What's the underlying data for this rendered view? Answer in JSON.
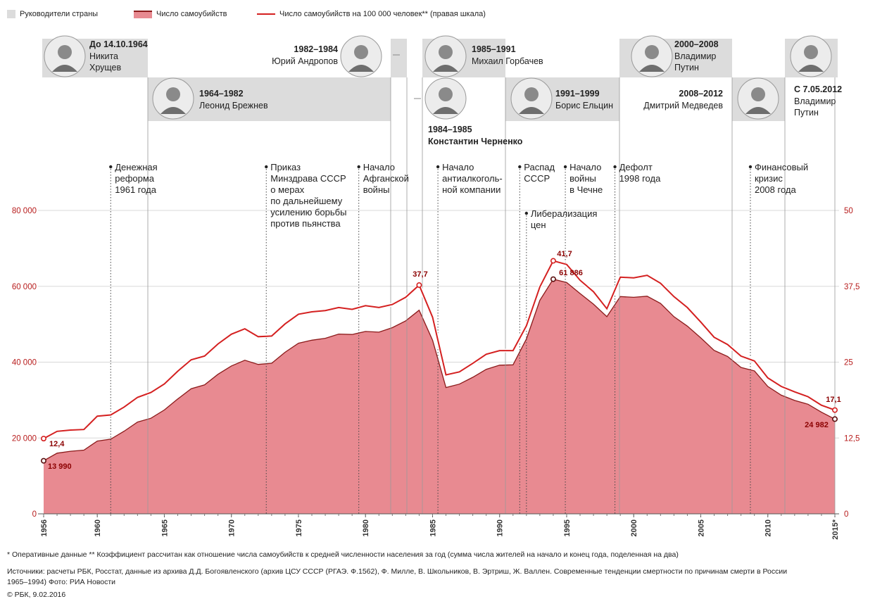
{
  "legend": {
    "leaders": "Руководители страны",
    "suicides": "Число самоубийств",
    "rate": "Число самоубийств на 100 000 человек** (правая шкала)"
  },
  "leaders": [
    {
      "years": "До 14.10.1964",
      "name1": "Никита",
      "name2": "Хрущев",
      "start": 1956,
      "end": 1964.8
    },
    {
      "years": "1964–1982",
      "name1": "Леонид Брежнев",
      "name2": "",
      "start": 1964.8,
      "end": 1982.9
    },
    {
      "years": "1982–1984",
      "name1": "Юрий Андропов",
      "name2": "",
      "start": 1982.9,
      "end": 1984.1
    },
    {
      "years": "1984–1985",
      "name1": "Константин Черненко",
      "name2": "",
      "start": 1984.1,
      "end": 1985.2
    },
    {
      "years": "1985–1991",
      "name1": "Михаил Горбачев",
      "name2": "",
      "start": 1985.2,
      "end": 1991.0
    },
    {
      "years": "1991–1999",
      "name1": "Борис Ельцин",
      "name2": "",
      "start": 1991.0,
      "end": 1999.9
    },
    {
      "years": "2000–2008",
      "name1": "Владимир",
      "name2": "Путин",
      "start": 1999.9,
      "end": 2008.3
    },
    {
      "years": "2008–2012",
      "name1": "Дмитрий Медведев",
      "name2": "",
      "start": 2008.3,
      "end": 2012.35
    },
    {
      "years": "С 7.05.2012",
      "name1": "Владимир",
      "name2": "Путин",
      "start": 2012.35,
      "end": 2015.3
    }
  ],
  "events": [
    {
      "year": 1961,
      "lines": [
        "Денежная",
        "реформа",
        "1961 года"
      ]
    },
    {
      "year": 1972.6,
      "lines": [
        "Приказ",
        "Минздрава СССР",
        "о мерах",
        "по дальнейшему",
        "усилению борьбы",
        "против пьянства"
      ]
    },
    {
      "year": 1979.5,
      "lines": [
        "Начало",
        "Афганской",
        "войны"
      ]
    },
    {
      "year": 1985.4,
      "lines": [
        "Начало",
        "антиалкоголь-",
        "ной компании"
      ]
    },
    {
      "year": 1991.5,
      "lines": [
        "Распад",
        "СССР"
      ]
    },
    {
      "year": 1992.0,
      "lines": [
        "Либерализация",
        "цен"
      ]
    },
    {
      "year": 1994.9,
      "lines": [
        "Начало",
        "войны",
        "в Чечне"
      ]
    },
    {
      "year": 1998.6,
      "lines": [
        "Дефолт",
        "1998 года"
      ]
    },
    {
      "year": 2008.7,
      "lines": [
        "Финансовый",
        "кризис",
        "2008 года"
      ]
    }
  ],
  "chart_data": {
    "type": "area",
    "x": [
      1956,
      1957,
      1958,
      1959,
      1960,
      1961,
      1962,
      1963,
      1964,
      1965,
      1966,
      1967,
      1968,
      1969,
      1970,
      1971,
      1972,
      1973,
      1974,
      1975,
      1976,
      1977,
      1978,
      1979,
      1980,
      1981,
      1982,
      1983,
      1984,
      1985,
      1986,
      1987,
      1988,
      1989,
      1990,
      1991,
      1992,
      1993,
      1994,
      1995,
      1996,
      1997,
      1998,
      1999,
      2000,
      2001,
      2002,
      2003,
      2004,
      2005,
      2006,
      2007,
      2008,
      2009,
      2010,
      2011,
      2012,
      2013,
      2014,
      2015
    ],
    "series": [
      {
        "name": "Число самоубийств",
        "axis": "left",
        "values": [
          13990,
          16000,
          16500,
          16800,
          19200,
          19700,
          21800,
          24200,
          25200,
          27400,
          30300,
          33000,
          34000,
          36800,
          39000,
          40500,
          39400,
          39700,
          42600,
          45000,
          45800,
          46300,
          47400,
          47300,
          48100,
          47900,
          49100,
          50900,
          53700,
          45800,
          33300,
          34200,
          36000,
          38100,
          39200,
          39300,
          46100,
          56300,
          61886,
          61000,
          58100,
          55300,
          52000,
          57300,
          57100,
          57400,
          55500,
          52000,
          49500,
          46400,
          43100,
          41500,
          38600,
          37700,
          33600,
          31300,
          29900,
          28900,
          26800,
          24982
        ]
      },
      {
        "name": "Число самоубийств на 100 000 человек** (правая шкала)",
        "axis": "right",
        "values": [
          12.4,
          13.6,
          13.8,
          13.9,
          16.1,
          16.3,
          17.6,
          19.2,
          20.0,
          21.4,
          23.5,
          25.4,
          26.0,
          28.0,
          29.6,
          30.5,
          29.2,
          29.3,
          31.3,
          32.9,
          33.3,
          33.5,
          34.0,
          33.7,
          34.3,
          34.0,
          34.5,
          35.7,
          37.7,
          32.4,
          22.9,
          23.4,
          24.8,
          26.3,
          26.9,
          26.9,
          31.0,
          37.4,
          41.7,
          41.1,
          38.5,
          36.6,
          33.8,
          39.0,
          38.9,
          39.3,
          38.0,
          35.8,
          34.0,
          31.6,
          29.1,
          27.9,
          26.0,
          25.2,
          22.4,
          21.0,
          20.1,
          19.3,
          17.9,
          17.1
        ]
      }
    ],
    "ylim_left": [
      0,
      80000
    ],
    "ylim_right": [
      0,
      50
    ],
    "yticks_left": [
      "0",
      "20 000",
      "40 000",
      "60 000",
      "80 000"
    ],
    "yticks_right": [
      "0",
      "12,5",
      "25",
      "37,5",
      "50"
    ],
    "xticks": [
      "1956",
      "1960",
      "1965",
      "1970",
      "1975",
      "1980",
      "1985",
      "1990",
      "1995",
      "2000",
      "2005",
      "2010",
      "2015*"
    ],
    "xtick_years": [
      1956,
      1960,
      1965,
      1970,
      1975,
      1980,
      1985,
      1990,
      1995,
      2000,
      2005,
      2010,
      2015
    ],
    "annotations": [
      {
        "text": "12,4",
        "year": 1956,
        "series": "rate"
      },
      {
        "text": "13 990",
        "year": 1956,
        "series": "count"
      },
      {
        "text": "37,7",
        "year": 1984,
        "series": "rate"
      },
      {
        "text": "41,7",
        "year": 1994,
        "series": "rate"
      },
      {
        "text": "61 886",
        "year": 1994,
        "series": "count"
      },
      {
        "text": "17,1",
        "year": 2015,
        "series": "rate"
      },
      {
        "text": "24 982",
        "year": 2015,
        "series": "count"
      }
    ]
  },
  "colors": {
    "area": "#e88a91",
    "area_edge": "#8b1a1a",
    "rate_line": "#d42020",
    "leader_band": "#dcdcdc",
    "axis_text": "#b71c1c"
  },
  "footnotes": {
    "line1": "* Оперативные данные     ** Коэффициент рассчитан как отношение числа самоубийств к средней численности населения за год (сумма числа жителей на начало и конец года, поделенная на два)",
    "line2": "Источники: расчеты РБК, Росстат, данные из архива Д.Д. Богоявленского (архив ЦСУ СССР (РГАЭ. Ф.1562), Ф. Милле, В. Школьников, В. Эртриш, Ж. Валлен. Современные тенденции смертности по причинам смерти в России",
    "line3": "1965–1994)     Фото: РИА Новости",
    "line4": "© РБК, 9.02.2016"
  }
}
